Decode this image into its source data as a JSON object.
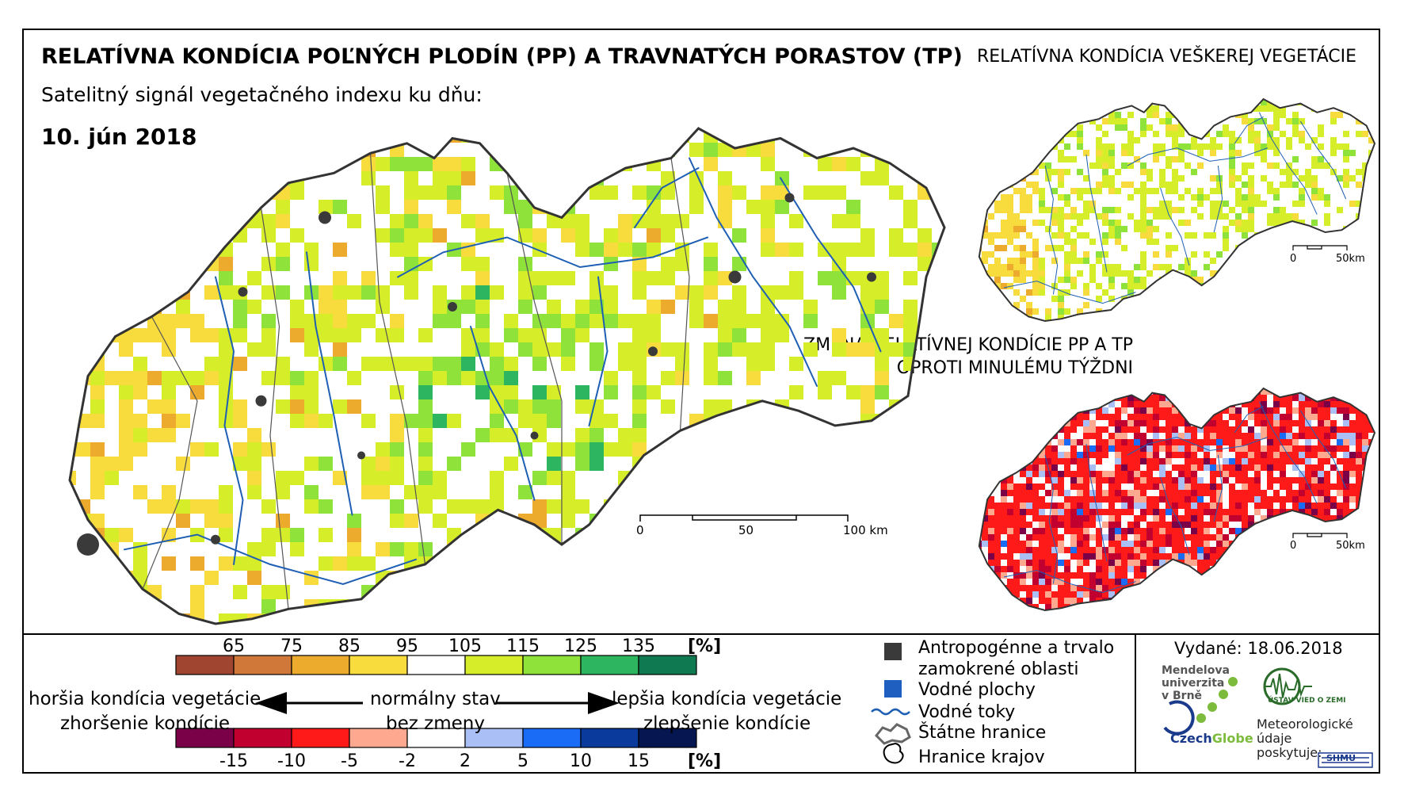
{
  "header": {
    "main_title": "RELATÍVNA KONDÍCIA POĽNÝCH PLODÍN (PP) A TRAVNATÝCH PORASTOV (TP)",
    "side_title": "RELATÍVNA KONDÍCIA VEŠKEREJ VEGETÁCIE",
    "subtitle": "Satelitný signál vegetačného indexu ku dňu:",
    "date": "10. jún 2018",
    "change_title_line1": "ZMENA RELATÍVNEJ KONDÍCIE PP A TP",
    "change_title_line2": "OPROTI MINULÉMU TÝŽDNI"
  },
  "main_map": {
    "scale_labels": [
      "0",
      "50",
      "100 km"
    ]
  },
  "inset_maps": {
    "vegetation_scale_labels": [
      "0",
      "50km"
    ],
    "change_scale_labels": [
      "0",
      "50km"
    ]
  },
  "legend": {
    "condition_unit": "[%]",
    "condition_ticks": [
      "65",
      "75",
      "85",
      "95",
      "105",
      "115",
      "125",
      "135"
    ],
    "condition_colors": [
      "#a0452f",
      "#d0773a",
      "#ecab2d",
      "#f8dc3e",
      "#ffffff",
      "#d6ee2a",
      "#8fe23a",
      "#2eb560",
      "#0f7a52"
    ],
    "change_unit": "[%]",
    "change_ticks": [
      "-15",
      "-10",
      "-5",
      "-2",
      "2",
      "5",
      "10",
      "15"
    ],
    "change_colors": [
      "#7a0048",
      "#c2002f",
      "#ff1a1a",
      "#ffa890",
      "#ffffff",
      "#a9bff5",
      "#1a6cf7",
      "#0a3a9c",
      "#061650"
    ],
    "worse_condition": "horšia kondícia vegetácie",
    "worse_change": "zhoršenie kondície",
    "normal_condition": "normálny stav",
    "no_change": "bez zmeny",
    "better_condition": "lepšia kondícia vegetácie",
    "better_change": "zlepšenie kondície"
  },
  "key": {
    "anthropogenic_line1": "Antropogénne a trvalo",
    "anthropogenic_line2": "zamokrené oblasti",
    "water_bodies": "Vodné plochy",
    "water_streams": "Vodné toky",
    "state_borders": "Štátne hranice",
    "region_borders": "Hranice krajov"
  },
  "credits": {
    "issued": "Vydané: 18.06.2018",
    "mendel_line1": "Mendelova",
    "mendel_line2": "univerzita",
    "mendel_line3": "v Brně",
    "czechglobe_a": "Czech",
    "czechglobe_b": "Globe",
    "earth_institute": "ÚSTAV VIED O ZEMI",
    "meteo_line1": "Meteorologické",
    "meteo_line2": "údaje",
    "meteo_line3": "poskytuje:",
    "shmu": "SHMÚ"
  }
}
